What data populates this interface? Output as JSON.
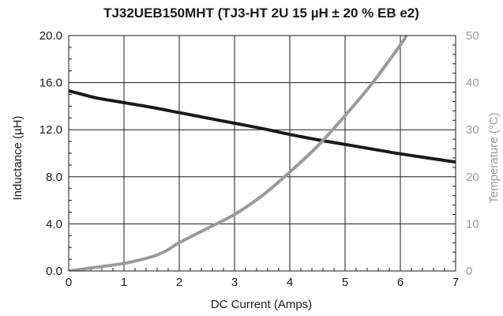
{
  "chart_data": {
    "type": "line",
    "title": "TJ32UEB150MHT (TJ3-HT 2U 15 µH ± 20 % EB e2)",
    "xlabel": "DC Current  (Amps)",
    "ylabel_left": "Inductance  (µH)",
    "ylabel_right": "Temperature  (°C)",
    "xlim": [
      0,
      7
    ],
    "ylim_left": [
      0,
      20
    ],
    "ylim_right": [
      0,
      50
    ],
    "x_ticks": [
      "0",
      "1",
      "2",
      "3",
      "4",
      "5",
      "6",
      "7"
    ],
    "y_left_ticks": [
      "0.0",
      "4.0",
      "8.0",
      "12.0",
      "16.0",
      "20.0"
    ],
    "y_right_ticks": [
      "0",
      "10",
      "20",
      "30",
      "40",
      "50"
    ],
    "grid": true,
    "series": [
      {
        "axis": "left",
        "color": "#1a1a1a",
        "x": [
          0,
          0.25,
          0.5,
          1.0,
          1.5,
          2.0,
          2.5,
          3.0,
          3.5,
          4.0,
          4.5,
          5.0,
          5.5,
          6.0,
          6.5,
          7.0
        ],
        "y": [
          15.3,
          15.0,
          14.7,
          14.3,
          13.9,
          13.45,
          13.0,
          12.55,
          12.1,
          11.6,
          11.15,
          10.75,
          10.35,
          9.95,
          9.6,
          9.25
        ]
      },
      {
        "axis": "right",
        "color": "#9a9a9a",
        "x": [
          0,
          0.5,
          1.0,
          1.5,
          1.75,
          2.0,
          2.5,
          3.0,
          3.5,
          4.0,
          4.5,
          5.0,
          5.5,
          6.0,
          6.1
        ],
        "y": [
          0,
          0.8,
          1.6,
          3.0,
          4.2,
          6.0,
          9.0,
          12.0,
          16.0,
          21.0,
          26.5,
          33.0,
          40.0,
          48.0,
          49.8
        ]
      }
    ]
  }
}
